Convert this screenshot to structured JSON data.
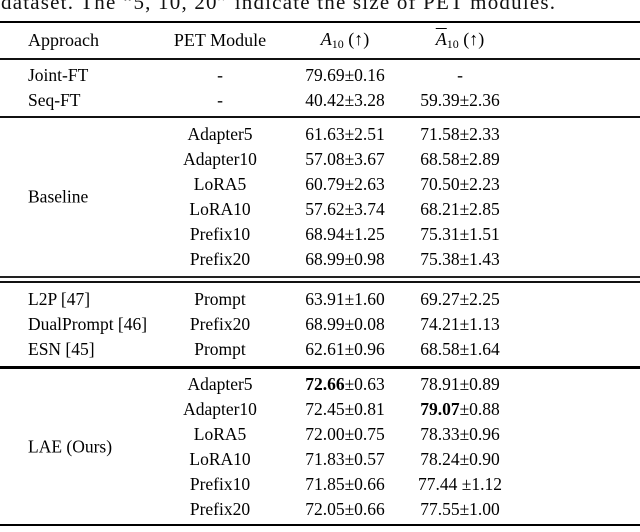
{
  "caption": "dataset. The “5, 10, 20” indicate the size of PET modules.",
  "tbl": {
    "header": {
      "approach": "Approach",
      "pet": "PET Module",
      "a10": {
        "letter": "A",
        "sub": "10",
        "arrow": "(↑)"
      },
      "abar": {
        "letter": "A",
        "sub": "10",
        "arrow": "(↑)"
      }
    },
    "s0": {
      "rows": [
        {
          "approach": "Joint-FT",
          "module": "-",
          "a10": "79.69±0.16",
          "abar": "-"
        },
        {
          "approach": "Seq-FT",
          "module": "-",
          "a10": "40.42±3.28",
          "abar": "59.39±2.36"
        }
      ]
    },
    "s1": {
      "label": "Baseline",
      "rows": [
        {
          "module": "Adapter5",
          "a10": "61.63±2.51",
          "abar": "71.58±2.33"
        },
        {
          "module": "Adapter10",
          "a10": "57.08±3.67",
          "abar": "68.58±2.89"
        },
        {
          "module": "LoRA5",
          "a10": "60.79±2.63",
          "abar": "70.50±2.23"
        },
        {
          "module": "LoRA10",
          "a10": "57.62±3.74",
          "abar": "68.21±2.85"
        },
        {
          "module": "Prefix10",
          "a10": "68.94±1.25",
          "abar": "75.31±1.51"
        },
        {
          "module": "Prefix20",
          "a10": "68.99±0.98",
          "abar": "75.38±1.43"
        }
      ]
    },
    "s2": {
      "rows": [
        {
          "approach": "L2P [47]",
          "module": "Prompt",
          "a10": "63.91±1.60",
          "abar": "69.27±2.25"
        },
        {
          "approach": "DualPrompt [46]",
          "module": "Prefix20",
          "a10": "68.99±0.08",
          "abar": "74.21±1.13"
        },
        {
          "approach": "ESN [45]",
          "module": "Prompt",
          "a10": "62.61±0.96",
          "abar": "68.58±1.64"
        }
      ]
    },
    "s3": {
      "label": "LAE (Ours)",
      "rows": [
        {
          "module": "Adapter5",
          "a10_b": "72.66",
          "a10_r": "±0.63",
          "abar": "78.91±0.89"
        },
        {
          "module": "Adapter10",
          "a10": "72.45±0.81",
          "abar_b": "79.07",
          "abar_r": "±0.88"
        },
        {
          "module": "LoRA5",
          "a10": "72.00±0.75",
          "abar": "78.33±0.96"
        },
        {
          "module": "LoRA10",
          "a10": "71.83±0.57",
          "abar": "78.24±0.90"
        },
        {
          "module": "Prefix10",
          "a10": "71.85±0.66",
          "abar": "77.44 ±1.12"
        },
        {
          "module": "Prefix20",
          "a10": "72.05±0.66",
          "abar": "77.55±1.00"
        }
      ]
    }
  }
}
